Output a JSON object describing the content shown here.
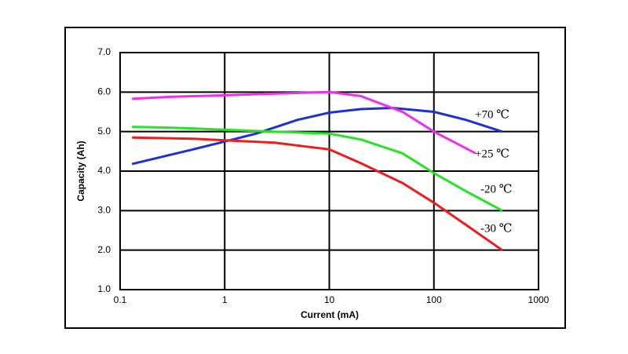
{
  "chart_data": {
    "type": "line",
    "x_label": "Current (mA)",
    "y_label": "Capacity (Ah)",
    "xscale": "log",
    "xlim": [
      0.1,
      1000
    ],
    "xticks": [
      0.1,
      1,
      10,
      100,
      1000
    ],
    "ylim": [
      1,
      7
    ],
    "yticks": [
      {
        "value": 1,
        "label": "1.0"
      },
      {
        "value": 2,
        "label": "2.0"
      },
      {
        "value": 3,
        "label": "3.0"
      },
      {
        "value": 4,
        "label": "4.0"
      },
      {
        "value": 5,
        "label": "5.0"
      },
      {
        "value": 6,
        "label": "6.0"
      },
      {
        "value": 7,
        "label": "7.0"
      }
    ],
    "grid": true,
    "series": [
      {
        "name": "+70 ℃",
        "color": "#1f2fd6",
        "x": [
          0.13,
          0.2,
          0.5,
          1,
          2,
          5,
          10,
          20,
          40,
          100,
          200,
          450
        ],
        "values": [
          4.18,
          4.3,
          4.55,
          4.75,
          4.95,
          5.3,
          5.48,
          5.57,
          5.6,
          5.5,
          5.3,
          5.0
        ]
      },
      {
        "name": "+25 ℃",
        "color": "#ee2ee8",
        "x": [
          0.13,
          0.3,
          1,
          3,
          10,
          20,
          50,
          100,
          250
        ],
        "values": [
          5.83,
          5.88,
          5.92,
          5.96,
          6.0,
          5.9,
          5.5,
          5.0,
          4.45
        ]
      },
      {
        "name": "-20 ℃",
        "color": "#22e622",
        "x": [
          0.13,
          0.3,
          1,
          3,
          10,
          20,
          50,
          100,
          200,
          450
        ],
        "values": [
          5.12,
          5.1,
          5.05,
          5.0,
          4.95,
          4.8,
          4.45,
          3.95,
          3.5,
          3.0
        ]
      },
      {
        "name": "-30 ℃",
        "color": "#ee1c1c",
        "x": [
          0.13,
          0.5,
          1,
          3,
          10,
          20,
          50,
          100,
          200,
          450
        ],
        "values": [
          4.85,
          4.82,
          4.78,
          4.72,
          4.55,
          4.2,
          3.7,
          3.2,
          2.65,
          2.0
        ]
      }
    ]
  }
}
